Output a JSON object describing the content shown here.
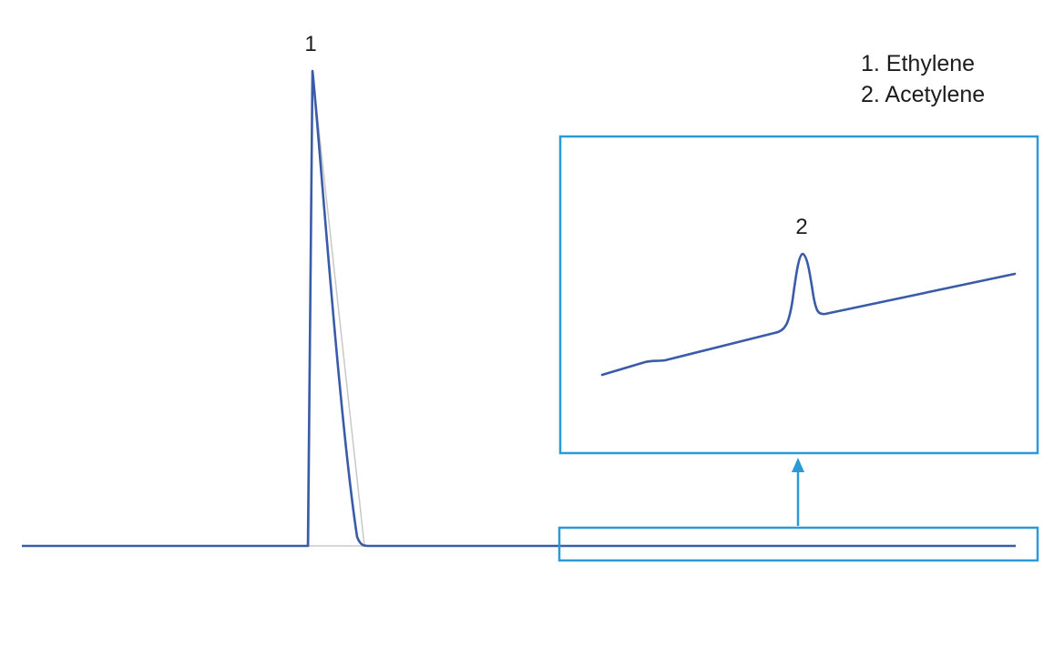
{
  "chart_data": {
    "type": "line",
    "title": "",
    "xlabel": "",
    "ylabel": "",
    "axes_shown": false,
    "grid": false,
    "colors": {
      "trace": "#3a5ba8",
      "inset_frame": "#2a9bd6",
      "baseline_fill": "#c8c8c8"
    },
    "peaks": [
      {
        "id": "1",
        "label": "1",
        "compound": "Ethylene",
        "rel_height": 1.0
      },
      {
        "id": "2",
        "label": "2",
        "compound": "Acetylene",
        "rel_height": 0.015
      }
    ],
    "legend": {
      "placement": "top-right",
      "items": [
        "1. Ethylene",
        "2. Acetylene"
      ]
    },
    "inset": {
      "description": "zoomed view of baseline region containing peak 2",
      "peak_label": "2"
    }
  }
}
